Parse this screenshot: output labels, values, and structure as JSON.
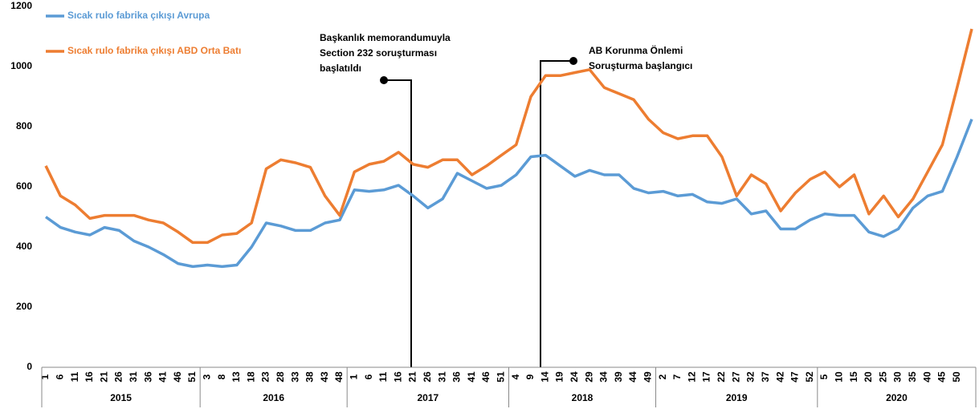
{
  "chart_data": {
    "type": "line",
    "legend": "top-left",
    "ylim": [
      0,
      1200
    ],
    "yticks": [
      0,
      200,
      400,
      600,
      800,
      1000,
      1200
    ],
    "category_groups": [
      {
        "label": "2015",
        "categories": [
          "1",
          "6",
          "11",
          "16",
          "21",
          "26",
          "31",
          "36",
          "41",
          "46",
          "51"
        ]
      },
      {
        "label": "2016",
        "categories": [
          "3",
          "8",
          "13",
          "18",
          "23",
          "28",
          "33",
          "38",
          "43",
          "48"
        ]
      },
      {
        "label": "2017",
        "categories": [
          "1",
          "6",
          "11",
          "16",
          "21",
          "26",
          "31",
          "36",
          "41",
          "46",
          "51"
        ]
      },
      {
        "label": "2018",
        "categories": [
          "4",
          "9",
          "14",
          "19",
          "24",
          "29",
          "34",
          "39",
          "44",
          "49"
        ]
      },
      {
        "label": "2019",
        "categories": [
          "2",
          "7",
          "12",
          "17",
          "22",
          "27",
          "32",
          "37",
          "42",
          "47",
          "52"
        ]
      },
      {
        "label": "2020",
        "categories": [
          "5",
          "10",
          "15",
          "20",
          "25",
          "30",
          "35",
          "40",
          "45",
          "50",
          null
        ]
      }
    ],
    "series": [
      {
        "name": "Sıcak rulo fabrika çıkışı Avrupa",
        "color": "#5b9bd5",
        "values": [
          500,
          465,
          450,
          440,
          465,
          455,
          420,
          400,
          375,
          345,
          335,
          340,
          335,
          340,
          400,
          480,
          470,
          455,
          455,
          480,
          490,
          590,
          585,
          590,
          605,
          570,
          530,
          560,
          645,
          620,
          595,
          605,
          640,
          700,
          705,
          670,
          635,
          655,
          640,
          640,
          595,
          580,
          585,
          570,
          575,
          550,
          545,
          560,
          510,
          520,
          460,
          460,
          490,
          510,
          505,
          505,
          450,
          435,
          460,
          530,
          570,
          585,
          700,
          825
        ]
      },
      {
        "name": "Sıcak rulo fabrika çıkışı ABD Orta Batı",
        "color": "#ed7d31",
        "values": [
          670,
          570,
          540,
          495,
          505,
          505,
          505,
          490,
          480,
          450,
          415,
          415,
          440,
          445,
          480,
          660,
          690,
          680,
          665,
          570,
          505,
          650,
          675,
          685,
          715,
          675,
          665,
          690,
          690,
          640,
          670,
          705,
          740,
          900,
          970,
          970,
          980,
          990,
          930,
          910,
          890,
          825,
          780,
          760,
          770,
          770,
          700,
          570,
          640,
          610,
          520,
          580,
          625,
          650,
          600,
          640,
          510,
          570,
          500,
          560,
          650,
          740,
          930,
          1125
        ]
      }
    ],
    "annotations": [
      {
        "lines": [
          "Başkanlık memorandumuyla",
          "Section 232 soruşturması",
          "başlatıldı"
        ]
      },
      {
        "lines": [
          "AB Korunma Önlemi",
          "Soruşturma başlangıcı"
        ]
      }
    ]
  }
}
